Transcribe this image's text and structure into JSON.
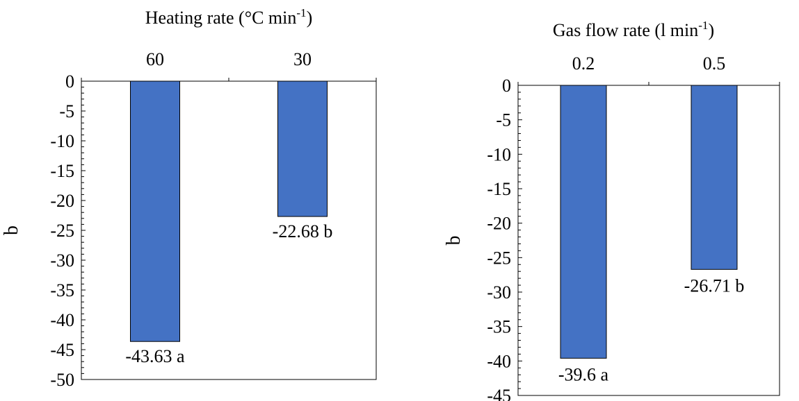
{
  "chart_data": [
    {
      "type": "bar",
      "title_main": "Heating rate (°C min",
      "title_sup": "-1",
      "title_close": ")",
      "xlabel": "",
      "ylabel": "b",
      "categories": [
        "60",
        "30"
      ],
      "values": [
        -43.63,
        -22.68
      ],
      "data_labels": [
        "-43.63 a",
        "-22.68 b"
      ],
      "yticks": [
        0,
        -5,
        -10,
        -15,
        -20,
        -25,
        -30,
        -35,
        -40,
        -45,
        -50
      ],
      "ylim": [
        -50,
        0
      ],
      "x_axis_position": "top",
      "grid": false,
      "bar_color": "#4472c4"
    },
    {
      "type": "bar",
      "title_main": "Gas flow rate (l min",
      "title_sup": "-1",
      "title_close": ")",
      "xlabel": "",
      "ylabel": "b",
      "categories": [
        "0.2",
        "0.5"
      ],
      "values": [
        -39.6,
        -26.71
      ],
      "data_labels": [
        "-39.6 a",
        "-26.71 b"
      ],
      "yticks": [
        0,
        -5,
        -10,
        -15,
        -20,
        -25,
        -30,
        -35,
        -40,
        -45
      ],
      "ylim": [
        -45,
        0
      ],
      "x_axis_position": "top",
      "grid": false,
      "bar_color": "#4472c4"
    }
  ]
}
